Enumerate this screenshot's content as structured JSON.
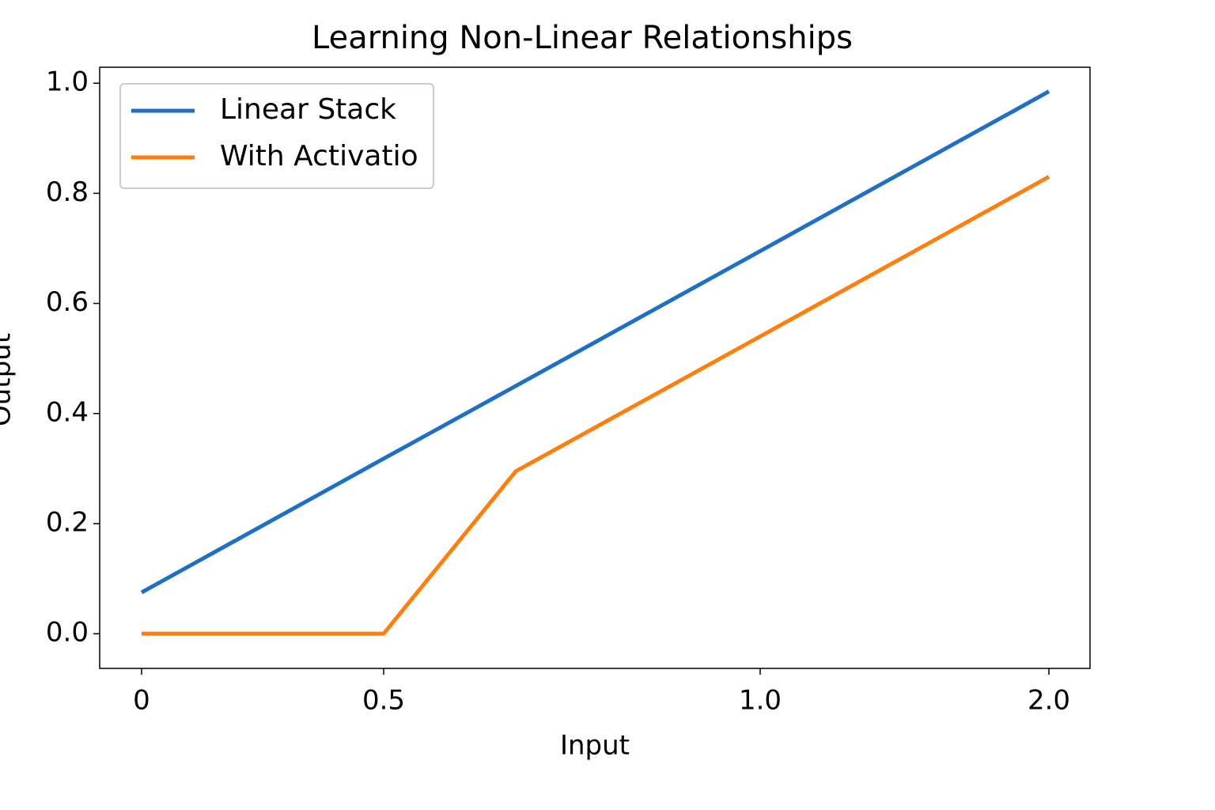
{
  "chart_data": {
    "type": "line",
    "title": "Learning Non-Linear Relationships",
    "x_label": "Input",
    "y_label": "Output",
    "categories": [
      "0",
      "0.5",
      null,
      "1.0",
      "2.0"
    ],
    "series": [
      {
        "name": "Linear Stack",
        "color": "#1f6fc4",
        "values": [
          0.075,
          0.318,
          0.45,
          0.695,
          0.985
        ]
      },
      {
        "name": "With Activatio",
        "color": "#ff7f0e",
        "values": [
          0,
          0,
          0.295,
          0.54,
          0.83
        ]
      }
    ],
    "ylim": [
      -0.063,
      1.029
    ],
    "yticks": [
      {
        "value": 0,
        "label": "0.0"
      },
      0.2,
      0.4,
      0.6,
      0.8,
      {
        "value": 1,
        "label": "1.0"
      }
    ],
    "legend": "upper left"
  }
}
